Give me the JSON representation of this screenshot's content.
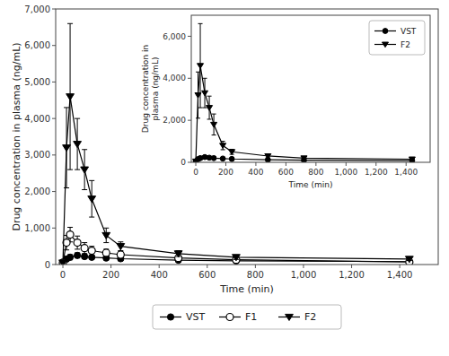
{
  "chart_data": [
    {
      "type": "line",
      "x": [
        0,
        15,
        30,
        60,
        90,
        120,
        180,
        240,
        480,
        720,
        1440
      ],
      "x_label": "Time (min)",
      "y_label": "Drug concentration in plasma (ng/mL)",
      "xlim": [
        -30,
        1560
      ],
      "ylim": [
        0,
        7000
      ],
      "xticks": [
        0,
        200,
        400,
        600,
        800,
        {
          "value": 1000,
          "label": "1,000"
        },
        {
          "value": 1200,
          "label": "1,200"
        },
        {
          "value": 1400,
          "label": "1,400"
        }
      ],
      "yticks": [
        0,
        {
          "value": 1000,
          "label": "1,000"
        },
        {
          "value": 2000,
          "label": "2,000"
        },
        {
          "value": 3000,
          "label": "3,000"
        },
        {
          "value": 4000,
          "label": "4,000"
        },
        {
          "value": 5000,
          "label": "5,000"
        },
        {
          "value": 6000,
          "label": "6,000"
        },
        {
          "value": 7000,
          "label": "7,000"
        }
      ],
      "grid": false,
      "legend": "bottom",
      "series": [
        {
          "name": "VST",
          "color": "#000000",
          "marker": "circle",
          "line_style": "solid",
          "values": [
            50,
            150,
            200,
            250,
            220,
            200,
            180,
            160,
            120,
            100,
            80
          ],
          "errors": [
            20,
            60,
            70,
            70,
            60,
            50,
            50,
            40,
            30,
            25,
            20
          ]
        },
        {
          "name": "F1",
          "color": "#000000",
          "marker": "open-circle",
          "line_style": "solid",
          "values": [
            50,
            600,
            820,
            600,
            450,
            380,
            320,
            270,
            180,
            130,
            70
          ],
          "errors": [
            20,
            200,
            200,
            180,
            150,
            120,
            100,
            80,
            50,
            40,
            20
          ]
        },
        {
          "name": "F2",
          "color": "#000000",
          "marker": "triangle-down",
          "line_style": "solid",
          "values": [
            50,
            3200,
            4600,
            3300,
            2600,
            1800,
            800,
            500,
            300,
            200,
            150
          ],
          "errors": [
            20,
            1100,
            2000,
            700,
            550,
            500,
            200,
            120,
            80,
            60,
            40
          ]
        }
      ]
    },
    {
      "type": "line",
      "x": [
        0,
        15,
        30,
        60,
        90,
        120,
        180,
        240,
        480,
        720,
        1440
      ],
      "x_label": "Time (min)",
      "y_label": "Drug concentration in\nplasma (ng/mL)",
      "xlim": [
        -30,
        1560
      ],
      "ylim": [
        0,
        7000
      ],
      "xticks": [
        0,
        200,
        400,
        600,
        800,
        {
          "value": 1000,
          "label": "1,000"
        },
        {
          "value": 1200,
          "label": "1,200"
        },
        {
          "value": 1400,
          "label": "1,400"
        }
      ],
      "yticks": [
        0,
        {
          "value": 2000,
          "label": "2,000"
        },
        {
          "value": 4000,
          "label": "4,000"
        },
        {
          "value": 6000,
          "label": "6,000"
        }
      ],
      "grid": false,
      "legend": "upper right",
      "series": [
        {
          "name": "VST",
          "color": "#000000",
          "marker": "circle",
          "line_style": "solid",
          "values": [
            50,
            150,
            200,
            250,
            220,
            200,
            180,
            160,
            120,
            100,
            80
          ],
          "errors": [
            20,
            60,
            70,
            70,
            60,
            50,
            50,
            40,
            30,
            25,
            20
          ]
        },
        {
          "name": "F2",
          "color": "#000000",
          "marker": "triangle-down",
          "line_style": "solid",
          "values": [
            50,
            3200,
            4600,
            3300,
            2600,
            1800,
            800,
            500,
            300,
            200,
            150
          ],
          "errors": [
            20,
            1100,
            2000,
            700,
            550,
            500,
            200,
            120,
            80,
            60,
            40
          ]
        }
      ]
    }
  ]
}
